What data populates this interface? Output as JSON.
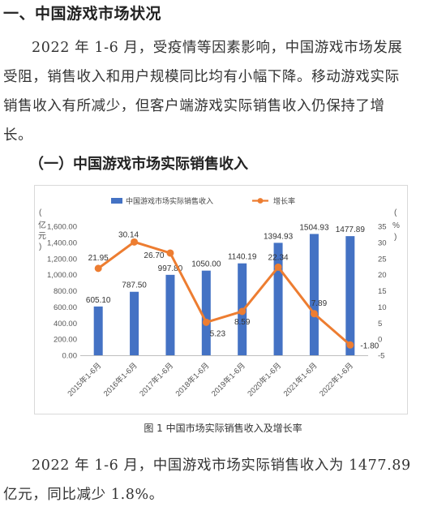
{
  "section_title": "一、中国游戏市场状况",
  "paragraph": "2022 年 1-6 月，受疫情等因素影响，中国游戏市场发展受阻，销售收入和用户规模同比均有小幅下降。移动游戏实际销售收入有所减少，但客户端游戏实际销售收入仍保持了增长。",
  "subsection_title": "（一）中国游戏市场实际销售收入",
  "figure_caption": "图 1 中国市场实际销售收入及增长率",
  "bottom_paragraph": "2022 年 1-6 月，中国游戏市场实际销售收入为 1477.89 亿元，同比减少 1.8%。",
  "colors": {
    "bar": "#4472c4",
    "line": "#ed7d31"
  },
  "chart_data": {
    "type": "bar",
    "categories": [
      "2015年1-6月",
      "2016年1-6月",
      "2017年1-6月",
      "2018年1-6月",
      "2019年1-6月",
      "2020年1-6月",
      "2021年1-6月",
      "2022年1-6月"
    ],
    "series": [
      {
        "name": "中国游戏市场实际销售收入",
        "type": "bar",
        "axis": "left",
        "values": [
          605.1,
          787.5,
          997.8,
          1050.0,
          1140.19,
          1394.93,
          1504.93,
          1477.89
        ]
      },
      {
        "name": "增长率",
        "type": "line",
        "axis": "right",
        "values": [
          21.95,
          30.14,
          26.7,
          5.23,
          8.59,
          22.34,
          7.89,
          -1.8
        ]
      }
    ],
    "bar_labels": [
      "605.10",
      "787.50",
      "997.80",
      "1050.00",
      "1140.19",
      "1394.93",
      "1504.93",
      "1477.89"
    ],
    "line_labels": [
      "21.95",
      "30.14",
      "26.70",
      "5.23",
      "8.59",
      "22.34",
      "7.89",
      "-1.80"
    ],
    "ylabel_left": "（亿元）",
    "ylabel_right": "（%）",
    "ylim_left": [
      0,
      1600
    ],
    "ylim_right": [
      -5,
      35
    ],
    "yticks_left": [
      "0.00",
      "200.00",
      "400.00",
      "600.00",
      "800.00",
      "1,000.00",
      "1,200.00",
      "1,400.00",
      "1,600.00"
    ],
    "yticks_right": [
      "-5",
      "0",
      "5",
      "10",
      "15",
      "20",
      "25",
      "30",
      "35"
    ],
    "legend_position": "top",
    "grid": false
  }
}
